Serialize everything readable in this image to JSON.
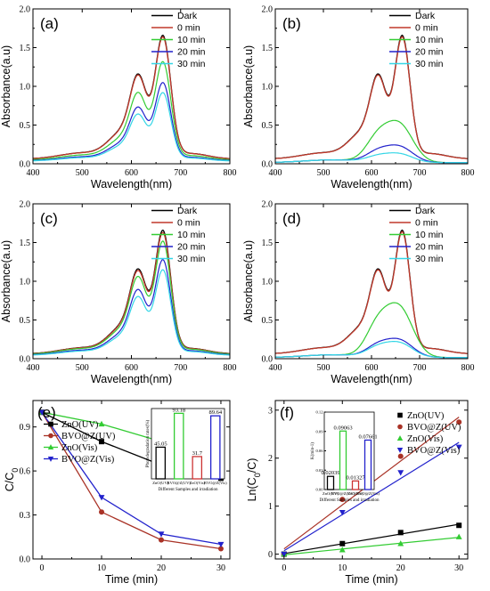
{
  "chart_data": [
    {
      "panel": "(a)",
      "type": "line",
      "xlabel": "Wavelength(nm)",
      "ylabel": "Absorbance(a.u)",
      "xlim": [
        400,
        800
      ],
      "ylim": [
        0,
        2.0
      ],
      "xticks": [
        "400",
        "500",
        "600",
        "700",
        "800"
      ],
      "yticks": [
        "0.0",
        "0.5",
        "1.0",
        "1.5",
        "2.0"
      ],
      "legend_position": "top-right",
      "series": [
        {
          "name": "Dark",
          "color": "#000000",
          "peak": 1.66
        },
        {
          "name": "0 min",
          "color": "#c0392b",
          "peak": 1.64
        },
        {
          "name": "10 min",
          "color": "#33cc33",
          "peak": 1.32
        },
        {
          "name": "20 min",
          "color": "#2222cc",
          "peak": 1.05
        },
        {
          "name": "30 min",
          "color": "#33d6e6",
          "peak": 0.92
        }
      ]
    },
    {
      "panel": "(b)",
      "type": "line",
      "xlabel": "Wavelength(nm)",
      "ylabel": "Absorbance(a.u)",
      "xlim": [
        400,
        800
      ],
      "ylim": [
        0,
        2.0
      ],
      "xticks": [
        "400",
        "500",
        "600",
        "700",
        "800"
      ],
      "yticks": [
        "0.0",
        "0.5",
        "1.0",
        "1.5",
        "2.0"
      ],
      "legend_position": "top-right",
      "series": [
        {
          "name": "Dark",
          "color": "#000000",
          "peak": 1.66
        },
        {
          "name": "0 min",
          "color": "#c0392b",
          "peak": 1.64
        },
        {
          "name": "10 min",
          "color": "#33cc33",
          "peak": 0.53
        },
        {
          "name": "20 min",
          "color": "#2222cc",
          "peak": 0.22
        },
        {
          "name": "30 min",
          "color": "#33d6e6",
          "peak": 0.12
        }
      ]
    },
    {
      "panel": "(c)",
      "type": "line",
      "xlabel": "Wavelength(nm)",
      "ylabel": "Absorbance(a.u)",
      "xlim": [
        400,
        800
      ],
      "ylim": [
        0,
        2.0
      ],
      "xticks": [
        "400",
        "500",
        "600",
        "700",
        "800"
      ],
      "yticks": [
        "0.0",
        "0.5",
        "1.0",
        "1.5",
        "2.0"
      ],
      "legend_position": "top-right",
      "series": [
        {
          "name": "Dark",
          "color": "#000000",
          "peak": 1.66
        },
        {
          "name": "0 min",
          "color": "#c0392b",
          "peak": 1.63
        },
        {
          "name": "10 min",
          "color": "#33cc33",
          "peak": 1.52
        },
        {
          "name": "20 min",
          "color": "#2222cc",
          "peak": 1.28
        },
        {
          "name": "30 min",
          "color": "#33d6e6",
          "peak": 1.15
        }
      ]
    },
    {
      "panel": "(d)",
      "type": "line",
      "xlabel": "Wavelength(nm)",
      "ylabel": "Absorbance(a.u)",
      "xlim": [
        400,
        800
      ],
      "ylim": [
        0,
        2.0
      ],
      "xticks": [
        "400",
        "500",
        "600",
        "700",
        "800"
      ],
      "yticks": [
        "0.0",
        "0.5",
        "1.0",
        "1.5",
        "2.0"
      ],
      "legend_position": "top-right",
      "series": [
        {
          "name": "Dark",
          "color": "#000000",
          "peak": 1.66
        },
        {
          "name": "0 min",
          "color": "#c0392b",
          "peak": 1.64
        },
        {
          "name": "10 min",
          "color": "#33cc33",
          "peak": 0.69
        },
        {
          "name": "20 min",
          "color": "#2222cc",
          "peak": 0.24
        },
        {
          "name": "30 min",
          "color": "#33d6e6",
          "peak": 0.2
        }
      ]
    },
    {
      "panel": "(e)",
      "type": "line",
      "xlabel": "Time (min)",
      "ylabel": "C/C0",
      "ylabel_main": "C/C",
      "ylabel_sub": "0",
      "xlim": [
        -1.5,
        31.5
      ],
      "ylim": [
        0,
        1.08
      ],
      "xticks": [
        "0",
        "10",
        "20",
        "30"
      ],
      "yticks": [
        "0.0",
        "0.3",
        "0.6",
        "0.9"
      ],
      "legend_position": "top-left",
      "x": [
        0,
        10,
        20,
        30
      ],
      "series": [
        {
          "name": "ZnO(UV)",
          "marker": "square",
          "color": "#000000",
          "values": [
            1.0,
            0.8,
            0.64,
            0.55
          ]
        },
        {
          "name": "BVO@Z(UV)",
          "marker": "circle",
          "color": "#a93226",
          "values": [
            1.0,
            0.32,
            0.13,
            0.07
          ]
        },
        {
          "name": "ZnO(Vis)",
          "marker": "triangle-up",
          "color": "#33cc33",
          "values": [
            1.0,
            0.92,
            0.8,
            0.7
          ]
        },
        {
          "name": "BVO@Z(Vis)",
          "marker": "triangle-down",
          "color": "#2222cc",
          "values": [
            1.0,
            0.42,
            0.17,
            0.1
          ]
        }
      ],
      "inset": {
        "type": "bar",
        "ylabel": "Photodegradation rates(%)",
        "xlabel": "Different Samples and irradiation",
        "categories": [
          "ZnO(UV)",
          "BVO@Z(UV)",
          "ZnO(Vis)",
          "BVO@Z(Vis)"
        ],
        "values": [
          45.05,
          93.18,
          31.7,
          89.64
        ],
        "labels": [
          "45.05",
          "93.18",
          "31.7",
          "89.64"
        ],
        "colors": [
          "#000000",
          "#33cc33",
          "#cc3333",
          "#2222cc"
        ],
        "ylim": [
          0,
          100
        ]
      }
    },
    {
      "panel": "(f)",
      "type": "scatter",
      "xlabel": "Time (min)",
      "ylabel": "Ln(C0/C)",
      "ylabel_pre": "Ln(C",
      "ylabel_sub": "0",
      "ylabel_post": "/C)",
      "xlim": [
        -1.5,
        31.5
      ],
      "ylim": [
        -0.1,
        3.2
      ],
      "xticks": [
        "0",
        "10",
        "20",
        "30"
      ],
      "yticks": [
        "0",
        "1",
        "2",
        "3"
      ],
      "legend_position": "top-right",
      "x": [
        0,
        10,
        20,
        30
      ],
      "series": [
        {
          "name": "ZnO(UV)",
          "marker": "square",
          "color": "#000000",
          "values": [
            0.0,
            0.22,
            0.45,
            0.6
          ]
        },
        {
          "name": "BVO@Z(UV)",
          "marker": "circle",
          "color": "#a93226",
          "values": [
            0.0,
            1.14,
            2.04,
            2.75
          ]
        },
        {
          "name": "ZnO(Vis)",
          "marker": "triangle-up",
          "color": "#33cc33",
          "values": [
            0.0,
            0.09,
            0.22,
            0.36
          ]
        },
        {
          "name": "BVO@Z(Vis)",
          "marker": "triangle-down",
          "color": "#2222cc",
          "values": [
            0.0,
            0.87,
            1.7,
            2.23
          ]
        }
      ],
      "inset": {
        "type": "bar",
        "ylabel": "K(min-1)",
        "xlabel": "Different Samples and irradiation",
        "categories": [
          "ZnO(UV)",
          "BVO@Z(UV)",
          "ZnO(Vis)",
          "BVO@Z(Vis)"
        ],
        "values": [
          0.02039,
          0.09063,
          0.01327,
          0.07661
        ],
        "labels": [
          "0.02039",
          "0.09063",
          "0.01327",
          "0.07661"
        ],
        "colors": [
          "#000000",
          "#33cc33",
          "#cc3333",
          "#2222cc"
        ],
        "ylim": [
          0,
          0.12
        ],
        "yticks": [
          "0.00",
          "0.03",
          "0.06",
          "0.09",
          "0.12"
        ]
      }
    }
  ]
}
